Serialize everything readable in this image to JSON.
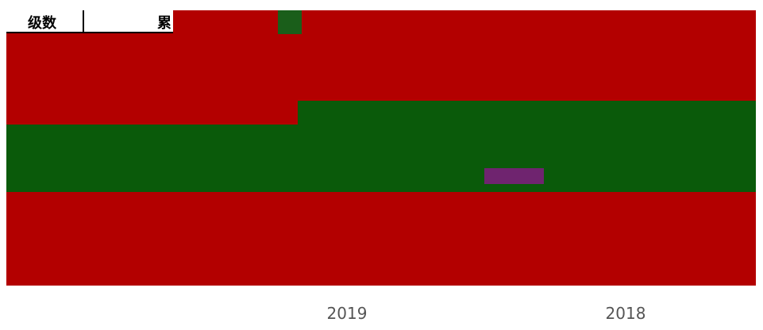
{
  "header": {
    "level": "级数",
    "cumulative": "累"
  },
  "footer": {
    "labels": [
      "2019",
      "2018"
    ]
  }
}
